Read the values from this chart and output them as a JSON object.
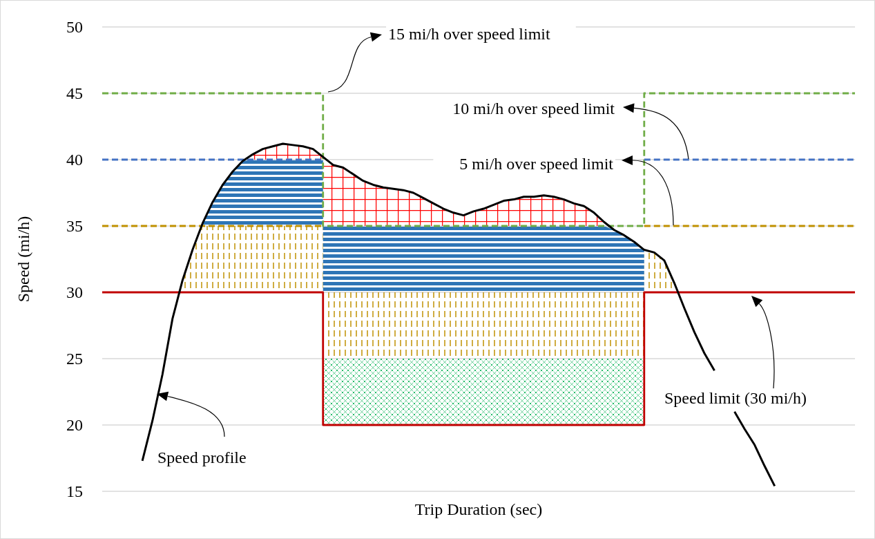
{
  "chart_data": {
    "type": "line",
    "xlabel": "Trip Duration (sec)",
    "ylabel": "Speed (mi/h)",
    "ylim": [
      15,
      50
    ],
    "yticks": [
      15,
      20,
      25,
      30,
      35,
      40,
      45,
      50
    ],
    "grid": "y",
    "tick_labels": "y",
    "annotations": [
      "15 mi/h over speed limit",
      "10 mi/h over speed limit",
      "5 mi/h over speed limit",
      "Speed limit (30 mi/h)",
      "Speed profile"
    ],
    "categories": [
      null,
      null,
      null,
      null,
      null,
      null,
      null,
      null,
      null,
      null,
      null,
      null,
      null,
      null,
      null,
      null,
      null,
      null,
      null,
      null,
      null,
      null,
      null,
      null,
      null,
      null,
      null,
      null,
      null,
      null,
      null,
      null,
      null,
      null,
      null,
      null,
      null,
      null,
      null,
      null,
      null,
      null,
      null,
      null,
      null,
      null,
      null,
      null,
      null,
      null,
      null,
      null,
      null,
      null,
      null,
      null,
      null,
      null,
      null,
      null,
      null,
      null,
      null,
      null,
      null,
      null,
      null,
      null,
      null,
      null,
      null,
      null,
      null,
      null,
      null,
      null
    ],
    "series": [
      {
        "type": "area",
        "color": "#bf9000",
        "values": [
          null,
          null,
          null,
          null,
          null,
          null,
          null,
          null,
          30.9,
          33.2,
          35,
          35,
          35,
          35,
          35,
          35,
          35,
          35,
          35,
          35,
          35,
          35,
          35,
          null,
          null,
          null,
          null,
          null,
          null,
          null,
          null,
          null,
          null,
          null,
          null,
          null,
          null,
          null,
          null,
          null,
          null,
          null,
          null,
          null,
          null,
          null,
          null,
          null,
          null,
          null,
          null,
          null,
          null,
          null,
          null,
          null,
          null,
          null,
          null,
          null,
          null,
          null,
          null,
          null,
          null,
          null,
          null,
          null,
          null,
          null,
          null,
          null,
          null,
          null,
          null,
          null
        ]
      },
      {
        "type": "area",
        "color": "#2e75b6",
        "values": [
          null,
          null,
          null,
          null,
          null,
          null,
          null,
          null,
          null,
          null,
          35.2,
          36.8,
          38.1,
          39.1,
          39.9,
          40,
          40,
          40,
          40,
          40,
          40,
          40,
          40,
          null,
          null,
          null,
          null,
          null,
          null,
          null,
          null,
          null,
          null,
          null,
          null,
          null,
          null,
          null,
          null,
          null,
          null,
          null,
          null,
          null,
          null,
          null,
          null,
          null,
          null,
          null,
          null,
          null,
          null,
          null,
          null,
          null,
          null,
          null,
          null,
          null,
          null,
          null,
          null,
          null,
          null,
          null,
          null,
          null,
          null,
          null,
          null,
          null,
          null,
          null,
          null,
          null
        ]
      },
      {
        "type": "area",
        "color": "#ff0000",
        "values": [
          null,
          null,
          null,
          null,
          null,
          null,
          null,
          null,
          null,
          null,
          null,
          null,
          null,
          null,
          null,
          40.4,
          40.8,
          41.0,
          41.2,
          41.1,
          41.0,
          40.8,
          40.2,
          null,
          null,
          null,
          null,
          null,
          null,
          null,
          null,
          null,
          null,
          null,
          null,
          null,
          null,
          null,
          null,
          null,
          null,
          null,
          null,
          null,
          null,
          null,
          null,
          null,
          null,
          null,
          null,
          null,
          null,
          null,
          null,
          null,
          null,
          null,
          null,
          null,
          null,
          null,
          null,
          null,
          null,
          null,
          null,
          null,
          null,
          null,
          null,
          null,
          null,
          null,
          null,
          null
        ]
      },
      {
        "type": "area",
        "color": "#ff0000",
        "values": [
          null,
          null,
          null,
          null,
          null,
          null,
          null,
          null,
          null,
          null,
          null,
          null,
          null,
          null,
          null,
          null,
          null,
          null,
          null,
          null,
          null,
          null,
          40.2,
          39.6,
          39.4,
          38.9,
          38.4,
          38.1,
          37.9,
          37.8,
          37.7,
          37.5,
          37.1,
          36.7,
          36.3,
          36.0,
          35.8,
          36.1,
          36.3,
          36.6,
          36.9,
          37.0,
          37.2,
          37.2,
          37.3,
          37.2,
          37.0,
          36.7,
          36.5,
          36.0,
          35.3,
          null,
          null,
          null,
          null,
          null,
          null,
          null,
          null,
          null,
          null,
          null,
          null,
          null,
          null,
          null,
          null,
          null,
          null,
          null,
          null,
          null,
          null,
          null,
          null,
          null
        ]
      },
      {
        "type": "area",
        "color": "#2e75b6",
        "values": [
          null,
          null,
          null,
          null,
          null,
          null,
          null,
          null,
          null,
          null,
          null,
          null,
          null,
          null,
          null,
          null,
          null,
          null,
          null,
          null,
          null,
          null,
          35,
          35,
          35,
          35,
          35,
          35,
          35,
          35,
          35,
          35,
          35,
          35,
          35,
          35,
          35,
          35,
          35,
          35,
          35,
          35,
          35,
          35,
          35,
          35,
          35,
          35,
          35,
          35,
          35,
          34.7,
          34.3,
          33.8,
          33.2,
          null,
          null,
          null,
          null,
          null,
          null,
          null,
          null,
          null,
          null,
          null,
          null,
          null,
          null,
          null,
          null,
          null,
          null,
          null,
          null,
          null
        ]
      },
      {
        "type": "area",
        "color": "#bf9000",
        "values": [
          null,
          null,
          null,
          null,
          null,
          null,
          null,
          null,
          null,
          null,
          null,
          null,
          null,
          null,
          null,
          null,
          null,
          null,
          null,
          null,
          null,
          null,
          30,
          30,
          30,
          30,
          30,
          30,
          30,
          30,
          30,
          30,
          30,
          30,
          30,
          30,
          30,
          30,
          30,
          30,
          30,
          30,
          30,
          30,
          30,
          30,
          30,
          30,
          30,
          30,
          30,
          30,
          30,
          30,
          30,
          null,
          null,
          null,
          null,
          null,
          null,
          null,
          null,
          null,
          null,
          null,
          null,
          null,
          null,
          null,
          null,
          null,
          null,
          null,
          null,
          null
        ]
      },
      {
        "type": "area",
        "color": "#00b050",
        "values": [
          null,
          null,
          null,
          null,
          null,
          null,
          null,
          null,
          null,
          null,
          null,
          null,
          null,
          null,
          null,
          null,
          null,
          null,
          null,
          null,
          null,
          null,
          25,
          25,
          25,
          25,
          25,
          25,
          25,
          25,
          25,
          25,
          25,
          25,
          25,
          25,
          25,
          25,
          25,
          25,
          25,
          25,
          25,
          25,
          25,
          25,
          25,
          25,
          25,
          25,
          25,
          25,
          25,
          25,
          25,
          null,
          null,
          null,
          null,
          null,
          null,
          null,
          null,
          null,
          null,
          null,
          null,
          null,
          null,
          null,
          null,
          null,
          null,
          null,
          null,
          null
        ]
      },
      {
        "type": "area",
        "color": "#bf9000",
        "values": [
          null,
          null,
          null,
          null,
          null,
          null,
          null,
          null,
          null,
          null,
          null,
          null,
          null,
          null,
          null,
          null,
          null,
          null,
          null,
          null,
          null,
          null,
          null,
          null,
          null,
          null,
          null,
          null,
          null,
          null,
          null,
          null,
          null,
          null,
          null,
          null,
          null,
          null,
          null,
          null,
          null,
          null,
          null,
          null,
          null,
          null,
          null,
          null,
          null,
          null,
          null,
          null,
          null,
          null,
          33.2,
          33.0,
          32.4,
          30.7,
          null,
          null,
          null,
          null,
          null,
          null,
          null,
          null,
          null,
          null,
          null,
          null,
          null,
          null,
          null,
          null,
          null,
          null
        ]
      },
      {
        "type": "step",
        "color": "#70ad47",
        "line_style": "dashed",
        "values": [
          45,
          45,
          45,
          45,
          45,
          45,
          45,
          45,
          45,
          45,
          45,
          45,
          45,
          45,
          45,
          45,
          45,
          45,
          45,
          45,
          45,
          45,
          35,
          35,
          35,
          35,
          35,
          35,
          35,
          35,
          35,
          35,
          35,
          35,
          35,
          35,
          35,
          35,
          35,
          35,
          35,
          35,
          35,
          35,
          35,
          35,
          35,
          35,
          35,
          35,
          35,
          35,
          35,
          35,
          45,
          45,
          45,
          45,
          45,
          45,
          45,
          45,
          45,
          45,
          45,
          45,
          45,
          45,
          45,
          45,
          45,
          45,
          45,
          45,
          45,
          45
        ]
      },
      {
        "type": "step",
        "color": "#4472c4",
        "line_style": "dashed",
        "values": [
          40,
          40,
          40,
          40,
          40,
          40,
          40,
          40,
          40,
          40,
          40,
          40,
          40,
          40,
          40,
          40,
          40,
          40,
          40,
          40,
          40,
          40,
          null,
          null,
          null,
          null,
          null,
          null,
          null,
          null,
          null,
          null,
          null,
          null,
          null,
          null,
          null,
          null,
          null,
          null,
          null,
          null,
          null,
          null,
          null,
          null,
          null,
          null,
          null,
          null,
          null,
          null,
          null,
          null,
          40,
          40,
          40,
          40,
          40,
          40,
          40,
          40,
          40,
          40,
          40,
          40,
          40,
          40,
          40,
          40,
          40,
          40,
          40,
          40,
          40,
          40
        ]
      },
      {
        "type": "step",
        "color": "#bf9000",
        "line_style": "dashed",
        "values": [
          35,
          35,
          35,
          35,
          35,
          35,
          35,
          35,
          35,
          35,
          35,
          35,
          35,
          35,
          35,
          35,
          35,
          35,
          35,
          35,
          35,
          35,
          null,
          null,
          null,
          null,
          null,
          null,
          null,
          null,
          null,
          null,
          null,
          null,
          null,
          null,
          null,
          null,
          null,
          null,
          null,
          null,
          null,
          null,
          null,
          null,
          null,
          null,
          null,
          null,
          null,
          null,
          null,
          null,
          35,
          35,
          35,
          35,
          35,
          35,
          35,
          35,
          35,
          35,
          35,
          35,
          35,
          35,
          35,
          35,
          35,
          35,
          35,
          35,
          35,
          35
        ]
      },
      {
        "type": "step",
        "color": "#c00000",
        "line_style": "solid",
        "values": [
          30,
          30,
          30,
          30,
          30,
          30,
          30,
          30,
          30,
          30,
          30,
          30,
          30,
          30,
          30,
          30,
          30,
          30,
          30,
          30,
          30,
          30,
          20,
          20,
          20,
          20,
          20,
          20,
          20,
          20,
          20,
          20,
          20,
          20,
          20,
          20,
          20,
          20,
          20,
          20,
          20,
          20,
          20,
          20,
          20,
          20,
          20,
          20,
          20,
          20,
          20,
          20,
          20,
          20,
          30,
          30,
          30,
          30,
          30,
          30,
          30,
          30,
          30,
          30,
          30,
          30,
          30,
          30,
          30,
          30,
          30,
          30,
          30,
          30,
          30,
          30
        ]
      },
      {
        "color": "#000000",
        "line_style": "solid",
        "values": [
          null,
          null,
          null,
          null,
          17.3,
          20.3,
          23.8,
          28.0,
          30.9,
          33.2,
          35.2,
          36.8,
          38.1,
          39.1,
          39.9,
          40.4,
          40.8,
          41.0,
          41.2,
          41.1,
          41.0,
          40.8,
          40.2,
          39.6,
          39.4,
          38.9,
          38.4,
          38.1,
          37.9,
          37.8,
          37.7,
          37.5,
          37.1,
          36.7,
          36.3,
          36.0,
          35.8,
          36.1,
          36.3,
          36.6,
          36.9,
          37.0,
          37.2,
          37.2,
          37.3,
          37.2,
          37.0,
          36.7,
          36.5,
          36.0,
          35.3,
          34.7,
          34.3,
          33.8,
          33.2,
          33.0,
          32.4,
          30.7,
          28.8,
          27.0,
          25.4,
          24.1,
          null,
          21.0,
          19.7,
          18.5,
          16.9,
          15.4,
          null,
          null,
          null,
          null,
          null,
          null,
          null,
          null
        ]
      }
    ]
  }
}
